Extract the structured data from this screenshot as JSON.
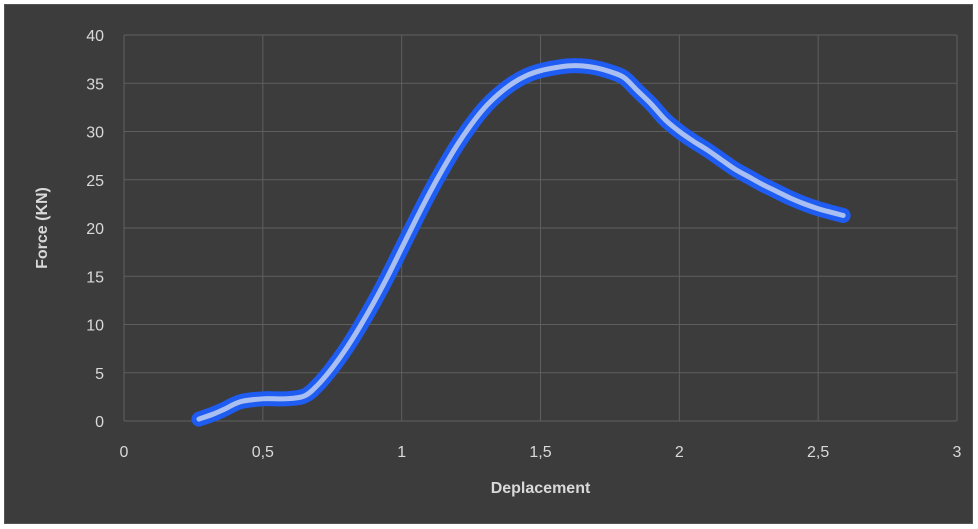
{
  "chart_data": {
    "type": "line",
    "title": "",
    "xlabel": "Deplacement",
    "ylabel": "Force (KN)",
    "xlim": [
      0,
      3
    ],
    "ylim": [
      0,
      40
    ],
    "xticks": [
      "0",
      "0,5",
      "1",
      "1,5",
      "2",
      "2,5",
      "3"
    ],
    "yticks": [
      "0",
      "5",
      "10",
      "15",
      "20",
      "25",
      "30",
      "35",
      "40"
    ],
    "grid": true,
    "legend": "none",
    "series": [
      {
        "x": [
          0.27,
          0.32,
          0.36,
          0.42,
          0.5,
          0.58,
          0.65,
          0.7,
          0.75,
          0.8,
          0.85,
          0.9,
          0.95,
          1.0,
          1.05,
          1.1,
          1.15,
          1.2,
          1.25,
          1.3,
          1.35,
          1.4,
          1.45,
          1.5,
          1.55,
          1.6,
          1.65,
          1.7,
          1.75,
          1.8,
          1.85,
          1.9,
          1.95,
          2.0,
          2.05,
          2.1,
          2.15,
          2.2,
          2.25,
          2.3,
          2.35,
          2.4,
          2.45,
          2.5,
          2.55,
          2.59
        ],
        "y": [
          0.2,
          0.7,
          1.2,
          2.0,
          2.3,
          2.3,
          2.6,
          3.8,
          5.5,
          7.5,
          9.8,
          12.3,
          15.0,
          17.9,
          20.8,
          23.6,
          26.2,
          28.6,
          30.7,
          32.5,
          33.9,
          35.0,
          35.8,
          36.3,
          36.6,
          36.8,
          36.8,
          36.6,
          36.2,
          35.6,
          34.2,
          32.8,
          31.2,
          30.0,
          29.0,
          28.1,
          27.1,
          26.1,
          25.3,
          24.5,
          23.8,
          23.1,
          22.5,
          22.0,
          21.6,
          21.3
        ]
      }
    ],
    "colors": {
      "line_outer": "#1f5cf2",
      "line_inner": "#a9bff2",
      "background": "#3c3c3c",
      "grid": "#5f5f5f",
      "text": "#d9d9d9"
    }
  }
}
